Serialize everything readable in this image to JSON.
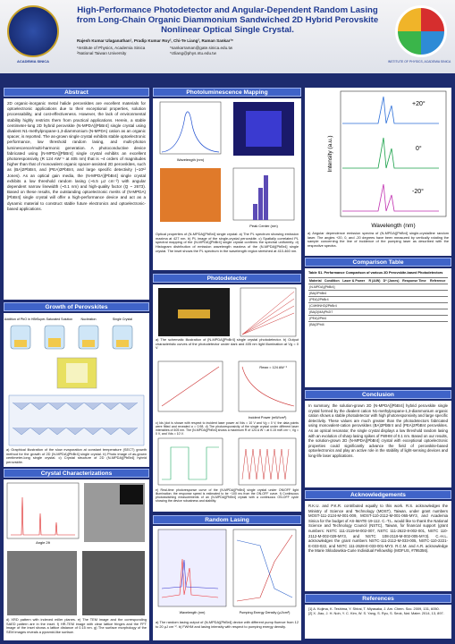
{
  "header": {
    "title": "High-Performance Photodetector and Angular-Dependent Random Lasing from Long-Chain Organic Diammonium Sandwiched 2D Hybrid Perovskite Nonlinear Optical Single Crystal.",
    "authors": "Rajesh Kumar Ulaganathan¹, Pradip Kumar Roy², Chi-Te Liang², Raman Sankar¹*",
    "affiliations": [
      "¹Institute of Physics, Academia Sinica",
      "²National Taiwan University"
    ],
    "emails": [
      "*sankarraman@gate.sinica.edu.tw",
      "*ctliang@phys.ntu.edu.tw"
    ],
    "left_logo": "ACADEMIA SINICA",
    "right_logo": "INSTITUTE OF PHYSICS, ACADEMIA SINICA"
  },
  "abstract": {
    "heading": "Abstract",
    "text": "2D organic-inorganic metal halide perovskites are excellent materials for optoelectronic applications due to their exceptional properties, solution processability, and cost-effectiveness. However, the lack of environmental stability highly restricts them from practical applications. Herein, a stable centimeter-long 2D hybrid perovskite (N-MPDA)[PbBr4] single crystal using divalent N1-methylpropane-1,3-diammonium (N-MPDA) cation as an organic spacer, is reported. The as-grown single crystal exhibits stable optoelectronic performance, low threshold random lasing, and multi-photon luminescence/multi-harmonic generation. A photoconductive device fabricated using [N-MPDA][PbBr4] single crystal exhibits an excellent photoresponsivity (R 124 AW⁻¹ at 405 nm) that is ~4 orders of magnitudes higher than that of monovalent organic spacer-assisted 2D perovskites, such as (BA)2PbBr4, and (PEA)2PbBr4, and large specific detectivity (~10¹² Jones). As an optical gain media, the (N-MPDA)[PbBr4] single crystal exhibits a low threshold random lasing (~6.5 μJ cm⁻²) with angular dependent narrow linewidth (~0.1 nm) and high-quality factor (Q ~ 2673). Based on these results, the outstanding optoelectronic merits of (N-MPDA)[PbBr4] single crystal will offer a high-performance device and act as a dynamic material to construct stable future electronics and optoelectronic-based applications."
  },
  "growth": {
    "heading": "Growth of Perovskites",
    "steps": [
      "Addition of PbO in HBr",
      "Super-Saturated Solution",
      "Nucleation",
      "Single Crystal"
    ],
    "caption": "a) Graphical illustration of the slow evaporation at constant temperature (SECT) growth method for the growth of 2D (N-MPDA)[PbBr4] single crystal. b) Photo image of as-grown centimeter-long single crystal. c) Crystal structure of 2D (N-MPDA)[PbBr4] hybrid perovskite."
  },
  "crystal": {
    "heading": "Crystal Characterizations",
    "axis": "Angle 2θ",
    "caption": "d) XRD pattern with indexed miller planes. e) The TEM image and the corresponding SAED pattern are in the inset. f) HR-TEM image with clear lattice fringes and the FFT image of the inset shows a lattice distance of 0.15 nm. g) The surface morphology of the SEM images reveals a pyramid-like surface."
  },
  "pl": {
    "heading": "Photoluminescence Mapping",
    "axes": [
      "Wavelength (nm)",
      "Peak Center (nm)"
    ],
    "caption": "Optical properties of (N-MPDA)[PbBr4] single crystal: a) The PL spectrum showing emission maxima at 427 nm. b) PL image of the single-crystal perovskite. c) Spatially correlated PL spectral mapping of the (N-MPDA)[PbBr4] single crystal confirms the spectral uniformity. d) Histogram distribution of emission wavelength maxima of the (N-MPDA)[PbBr4] single crystal. The inset shows the PL spectrum in the wavelength region stretched at 410-460 nm."
  },
  "photodetector": {
    "heading": "Photodetector",
    "caption_ab": "a) The schematic illustration of [N-MPDA][PbBr4] single crystal photodetector. b) Output characteristic curves of the photodetector under dark and 405 nm light illumination at Vg = 0 V",
    "caption_cd": "c) Ids (dot is shown with respect to incident laser power at Vds = 10 V and Vg = 0 V; the data points were fitted and revealed α = 0.98. d) The photoresponsivity of the single crystal under different laser intensities of 405 nm. The (N-MPDA)[PbBr4] shows a maximum R of 124 A W⁻¹ at 0.15 mW cm⁻², Vg = 0 V, and Vds = 10 V.",
    "caption_ef": "e) Real-time photoresponse curve of the (N-MPDA)[PbBr4] single crystal under ON/OFF light illumination; the response speed is estimated to be ~100 ms from the ON-OFF curve. f) Continuous photoswitching measurements of an (N-MPDA)[PbBr4] crystal with a continuous ON-OFF cycle showing the device robustness and stability.",
    "rmax": "Rmax = 124 AW⁻¹",
    "axis": "Incident Power (mW/cm²)"
  },
  "lasing": {
    "heading": "Random Lasing",
    "axes": [
      "Wavelength (nm)",
      "Pumping Energy Density (μJ/cm²)"
    ],
    "caption": "a) The random lasing output of (N-MPDA)[PbBr4] device with different pump fluence from 12 to 20 μJ cm⁻². b) FWHM and lasing intensity with respect to pumping energy density."
  },
  "angular": {
    "angles": [
      "+20°",
      "0°",
      "-20°"
    ],
    "axes": [
      "Wavelength (nm)",
      "Intensity (a.u.)"
    ],
    "caption": "a) Angular dependence emission spectra of (N-MPDA)[PbBr4] single-crystalline random laser. The angles +20, 0, and -20 degrees have been measured by vertically rotating the sample concerning the line of incidence of the pumping laser as described with the respective spectra."
  },
  "table": {
    "heading": "Comparison Table",
    "title": "Table S1. Performance Comparison of various 2D Perovskite-based Photodetectors",
    "columns": [
      "Material",
      "Condition",
      "Laser & Power",
      "R (A/W)",
      "D* (Jones)",
      "Response Time",
      "Reference"
    ],
    "rows": [
      "(N-MPDA)[PbBr4]",
      "(BA)2PbBr4",
      "(PEA)2PbBr4",
      "(C4H9NH3)2PbBr4",
      "(BA)2(MA)Pb2I7",
      "(PEA)2PbI4",
      "(BA)2PbI4"
    ]
  },
  "conclusion": {
    "heading": "Conclusion",
    "text": "In summary, the solution-grown 2D (N-MPDA)[PbBr4] hybrid perovskite single crystal formed by the divalent cation N1-methylpropane-1,3-diammonium organic cation shows a stable photodetector with high photoresponsivity and large specific detectivity. These values are much greater than the photodetectors fabricated using monovalent-cation perovskites (BA)2PbBr4 and (PEA)2PbBr4 perovskites. As an optical resonator, the single crystal displays a low threshold random lasing with an evolution of sharp lasing spikes of FWHM of 0.1 nm. Based on our results, the solution-grown 2D (N-MPDA)[PbBr4] crystal with exceptional optoelectronic properties could significantly advance the field of perovskite-based optoelectronics and play an active role in the stability of light-sensing devices and long-life laser applications."
  },
  "acknowledgements": {
    "heading": "Acknowledgements",
    "text": "R.K.U. and P.K.R. contributed equally to this work. R.S. acknowledges the Ministry of Science and Technology (MOST), Taiwan, under grant numbers MOST-111-2124-M-001-009, MOST-110-2112-M-001-065-MY3, and Academia Sinica for the budget of AS-iMATE-19-112. C.-T.L. would like to thank the National Science and Technology Council (NSTC), Taiwan, for financial support (grant numbers: NSTC 111-2119-M-002-007, NSTC 111-2622-8-002-001, NSTC 110-2112-M-002-029-MY3, and NSTC 108-2119-M-002-005-MY3). C.-H.L. acknowledges the grant numbers NSTC-111-2112-M-033-005, NSTC-110-2221-E-033-022, and NSTC 111-2628-E-033-001-MY3. R.C.M. and A.R. acknowledge the Marie Sklodowska-Curie Individual Fellowship (MOFUS, #795356)."
  },
  "references": {
    "heading": "References",
    "items": [
      "[1] A. Kojima, K. Teshima, Y. Shirai, T. Miyasaka, J. Am. Chem. Soc. 2009, 131, 6050.",
      "[2] X. Jiao, J. H. Noh, Y. C. Kim, W. S. Yang, S. Ryu, S. Seok, Nat. Mater. 2014, 13, 897."
    ]
  }
}
